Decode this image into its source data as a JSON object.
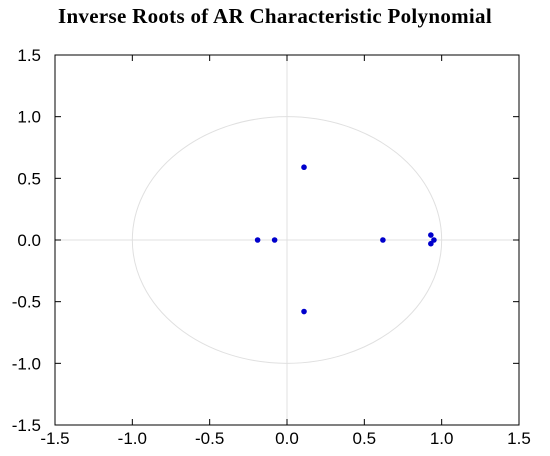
{
  "chart_data": {
    "type": "scatter",
    "title": "Inverse Roots of AR Characteristic Polynomial",
    "xlabel": "",
    "ylabel": "",
    "xlim": [
      -1.5,
      1.5
    ],
    "ylim": [
      -1.5,
      1.5
    ],
    "xticks": [
      "-1.5",
      "-1.0",
      "-0.5",
      "0.0",
      "0.5",
      "1.0",
      "1.5"
    ],
    "yticks": [
      "1.5",
      "1.0",
      "0.5",
      "0.0",
      "-0.5",
      "-1.0",
      "-1.5"
    ],
    "unit_circle": true,
    "grid": false,
    "colors": {
      "points": "#0000cc",
      "reference": "#e0e0e0",
      "frame": "#000000"
    },
    "series": [
      {
        "x": [
          0.11,
          0.11,
          -0.19,
          -0.08,
          0.62,
          0.93,
          0.95,
          0.93
        ],
        "y": [
          0.59,
          -0.58,
          0.0,
          0.0,
          0.0,
          0.04,
          0.0,
          -0.03
        ]
      }
    ]
  }
}
